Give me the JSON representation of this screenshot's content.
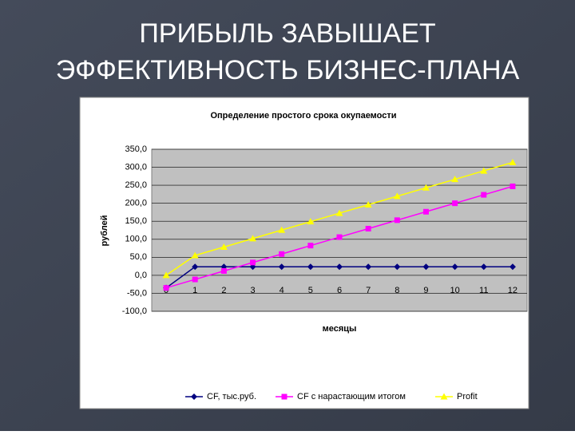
{
  "slide": {
    "title": [
      "ПРИБЫЛЬ ЗАВЫШАЕТ",
      "ЭФФЕКТИВНОСТЬ БИЗНЕС-ПЛАНА"
    ]
  },
  "chart_data": {
    "type": "line",
    "title": "Определение простого срока окупаемости",
    "y_label": "рублей",
    "x_label": "месяцы",
    "categories": [
      "0",
      "1",
      "2",
      "3",
      "4",
      "5",
      "6",
      "7",
      "8",
      "9",
      "10",
      "11",
      "12"
    ],
    "series": [
      {
        "name": "CF, тыс.руб.",
        "color": "#000080",
        "marker": "diamond",
        "values": [
          -35,
          23.5,
          23.5,
          23.5,
          23.5,
          23.5,
          23.5,
          23.5,
          23.5,
          23.5,
          23.5,
          23.5,
          23.5
        ]
      },
      {
        "name": "CF с нарастающим итогом",
        "color": "#ff00ff",
        "marker": "square",
        "values": [
          -35,
          -11.5,
          12,
          35.5,
          59,
          82.5,
          106,
          129.5,
          153,
          176.5,
          200,
          223.5,
          247
        ]
      },
      {
        "name": "Profit",
        "color": "#ffff00",
        "marker": "triangle",
        "values": [
          0,
          55,
          78.5,
          102,
          125.5,
          149,
          172.5,
          196,
          219.5,
          243,
          266.5,
          290,
          313.5
        ]
      }
    ],
    "ylim": [
      -100,
      350
    ],
    "yticks": [
      {
        "value": -100,
        "label": "-100,0"
      },
      {
        "value": -50,
        "label": "-50,0"
      },
      {
        "value": 0,
        "label": "0,0"
      },
      {
        "value": 50,
        "label": "50,0"
      },
      {
        "value": 100,
        "label": "100,0"
      },
      {
        "value": 150,
        "label": "150,0"
      },
      {
        "value": 200,
        "label": "200,0"
      },
      {
        "value": 250,
        "label": "250,0"
      },
      {
        "value": 300,
        "label": "300,0"
      },
      {
        "value": 350,
        "label": "350,0"
      }
    ],
    "grid": true,
    "legend": "bottom"
  }
}
